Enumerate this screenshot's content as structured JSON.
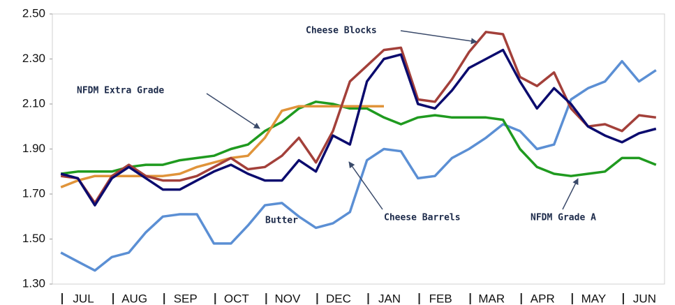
{
  "chart_data": {
    "type": "line",
    "categories": [
      null,
      "JUL",
      null,
      null,
      "AUG",
      null,
      null,
      "SEP",
      null,
      null,
      "OCT",
      null,
      null,
      "NOV",
      null,
      null,
      "DEC",
      null,
      null,
      "JAN",
      null,
      null,
      "FEB",
      null,
      null,
      "MAR",
      null,
      null,
      "APR",
      null,
      null,
      "MAY",
      null,
      null,
      "JUN",
      null
    ],
    "series": [
      {
        "name": "Butter",
        "color": "#5b8fd4",
        "values": [
          1.44,
          1.4,
          1.36,
          1.42,
          1.44,
          1.53,
          1.6,
          1.61,
          1.61,
          1.48,
          1.48,
          1.56,
          1.65,
          1.66,
          1.6,
          1.55,
          1.57,
          1.62,
          1.85,
          1.9,
          1.89,
          1.77,
          1.78,
          1.86,
          1.9,
          1.95,
          2.01,
          1.98,
          1.9,
          1.92,
          2.12,
          2.17,
          2.2,
          2.29,
          2.2,
          2.25
        ]
      },
      {
        "name": "NFDM Grade A",
        "color": "#1f9a1f",
        "values": [
          1.79,
          1.8,
          1.8,
          1.8,
          1.82,
          1.83,
          1.83,
          1.85,
          1.86,
          1.87,
          1.9,
          1.92,
          1.98,
          2.02,
          2.08,
          2.11,
          2.1,
          2.08,
          2.08,
          2.04,
          2.01,
          2.04,
          2.05,
          2.04,
          2.04,
          2.04,
          2.03,
          1.9,
          1.82,
          1.79,
          1.78,
          1.79,
          1.8,
          1.86,
          1.86,
          1.83
        ]
      },
      {
        "name": "NFDM Extra Grade",
        "color": "#e0943a",
        "values": [
          1.73,
          1.76,
          1.78,
          1.78,
          1.78,
          1.78,
          1.78,
          1.79,
          1.82,
          1.84,
          1.86,
          1.87,
          1.95,
          2.07,
          2.09,
          2.09,
          2.09,
          2.09,
          2.09,
          2.09,
          null,
          null,
          null,
          null,
          null,
          null,
          null,
          null,
          null,
          null,
          null,
          null,
          null,
          null,
          null,
          null
        ]
      },
      {
        "name": "Cheese Barrels",
        "color": "#a3403a",
        "values": [
          1.78,
          1.77,
          1.66,
          1.78,
          1.83,
          1.78,
          1.76,
          1.76,
          1.78,
          1.82,
          1.86,
          1.81,
          1.82,
          1.87,
          1.95,
          1.84,
          1.98,
          2.2,
          2.27,
          2.34,
          2.35,
          2.12,
          2.11,
          2.21,
          2.33,
          2.42,
          2.41,
          2.22,
          2.18,
          2.24,
          2.08,
          2.0,
          2.01,
          1.98,
          2.05,
          2.04
        ]
      },
      {
        "name": "Cheese Blocks",
        "color": "#0b0b6e",
        "values": [
          1.79,
          1.77,
          1.65,
          1.77,
          1.82,
          1.77,
          1.72,
          1.72,
          1.76,
          1.8,
          1.83,
          1.79,
          1.76,
          1.76,
          1.85,
          1.8,
          1.96,
          1.92,
          2.2,
          2.3,
          2.32,
          2.1,
          2.08,
          2.16,
          2.26,
          2.3,
          2.34,
          2.2,
          2.08,
          2.17,
          2.1,
          2.0,
          1.96,
          1.93,
          1.97,
          1.99
        ]
      }
    ],
    "annotations": [
      "Cheese Blocks",
      "NFDM Extra Grade",
      "Butter",
      "Cheese Barrels",
      "NFDM Grade A"
    ],
    "ylim": [
      1.3,
      2.5
    ],
    "yticks": [
      {
        "value": 1.3,
        "label": "1.30"
      },
      {
        "value": 1.5,
        "label": "1.50"
      },
      {
        "value": 1.7,
        "label": "1.70"
      },
      {
        "value": 1.9,
        "label": "1.90"
      },
      {
        "value": 2.1,
        "label": "2.10"
      },
      {
        "value": 2.3,
        "label": "2.30"
      },
      {
        "value": 2.5,
        "label": "2.50"
      }
    ],
    "grid": false
  }
}
